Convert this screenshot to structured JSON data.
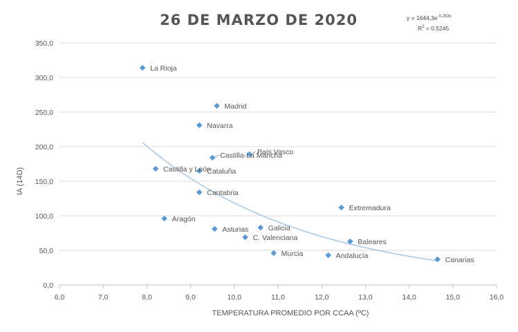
{
  "chart_data": {
    "type": "scatter",
    "title": "26 DE MARZO DE 2020",
    "xlabel": "TEMPERATURA  PROMEDIO POR CCAA (ºC)",
    "ylabel": "IA (14D)",
    "xlim": [
      6.0,
      16.0
    ],
    "ylim": [
      0.0,
      350.0
    ],
    "x_ticks": [
      6,
      7,
      8,
      9,
      10,
      11,
      12,
      13,
      14,
      15,
      16
    ],
    "x_tick_labels": [
      "6,0",
      "7,0",
      "8,0",
      "9,0",
      "10,0",
      "11,0",
      "12,0",
      "13,0",
      "14,0",
      "15,0",
      "16,0"
    ],
    "y_ticks": [
      0,
      50,
      100,
      150,
      200,
      250,
      300,
      350
    ],
    "y_tick_labels": [
      "0,0",
      "50,0",
      "100,0",
      "150,0",
      "200,0",
      "250,0",
      "300,0",
      "350,0"
    ],
    "grid": "horizontal",
    "marker_color": "#5b9bd5",
    "trend_color": "#9dc3e6",
    "points": [
      {
        "label": "La Rioja",
        "x": 7.9,
        "y": 314
      },
      {
        "label": "Madrid",
        "x": 9.6,
        "y": 259
      },
      {
        "label": "Navarra",
        "x": 9.2,
        "y": 231
      },
      {
        "label": "País Vasco",
        "x": 10.35,
        "y": 189
      },
      {
        "label": "Castilla-La Mancha",
        "x": 9.5,
        "y": 184
      },
      {
        "label": "Castilla y León",
        "x": 8.2,
        "y": 168
      },
      {
        "label": "Cataluña",
        "x": 9.2,
        "y": 165
      },
      {
        "label": "Cantabria",
        "x": 9.2,
        "y": 134
      },
      {
        "label": "Extremadura",
        "x": 12.45,
        "y": 112
      },
      {
        "label": "Aragón",
        "x": 8.4,
        "y": 96
      },
      {
        "label": "Asturias",
        "x": 9.55,
        "y": 81
      },
      {
        "label": "Galicia",
        "x": 10.6,
        "y": 83
      },
      {
        "label": "C. Valenciana",
        "x": 10.25,
        "y": 69
      },
      {
        "label": "Baleares",
        "x": 12.65,
        "y": 63
      },
      {
        "label": "Murcia",
        "x": 10.9,
        "y": 46
      },
      {
        "label": "Andalucía",
        "x": 12.15,
        "y": 43
      },
      {
        "label": "Canarias",
        "x": 14.65,
        "y": 37
      }
    ],
    "trendline": {
      "type": "exponential",
      "a": 1644.3,
      "b": -0.263,
      "x_range": [
        7.9,
        14.65
      ],
      "equation_label": "y = 1644,3e",
      "equation_exponent": "-0,263x",
      "r2_label": "R",
      "r2_value": " = 0,5245"
    }
  }
}
